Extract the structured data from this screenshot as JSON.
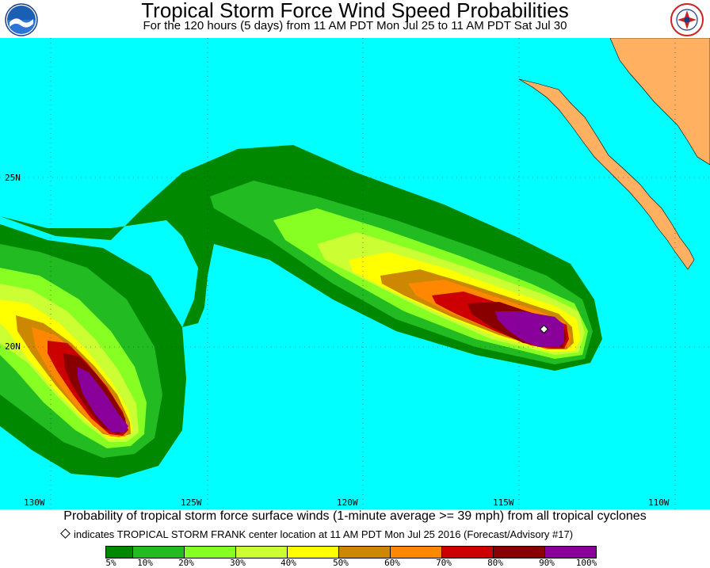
{
  "header": {
    "title": "Tropical Storm Force Wind Speed Probabilities",
    "subtitle": "For the 120 hours (5 days) from 11 AM PDT Mon Jul 25 to 11 AM PDT Sat Jul 30"
  },
  "map": {
    "lat_labels": [
      "25N",
      "20N"
    ],
    "lon_labels": [
      "130W",
      "125W",
      "120W",
      "115W",
      "110W"
    ],
    "colors": {
      "ocean": "#00ffff",
      "land": "#ffb060",
      "p5": "#008800",
      "p10": "#22bb22",
      "p20": "#88ff22",
      "p30": "#ccff33",
      "p40": "#ffff00",
      "p50": "#cc8800",
      "p60": "#ff8800",
      "p70": "#cc0000",
      "p80": "#880000",
      "p90": "#880099"
    }
  },
  "footer": {
    "description": "Probability of tropical storm force surface winds (1-minute average >= 39 mph) from all tropical cyclones",
    "note": "indicates TROPICAL STORM FRANK center location at 11 AM PDT Mon Jul 25 2016 (Forecast/Advisory #17)"
  },
  "legend": {
    "labels": [
      "5%",
      "10%",
      "20%",
      "30%",
      "40%",
      "50%",
      "60%",
      "70%",
      "80%",
      "90%",
      "100%"
    ],
    "colors": [
      "#008800",
      "#22bb22",
      "#88ff22",
      "#ccff33",
      "#ffff00",
      "#cc8800",
      "#ff8800",
      "#cc0000",
      "#880000",
      "#880099"
    ]
  }
}
